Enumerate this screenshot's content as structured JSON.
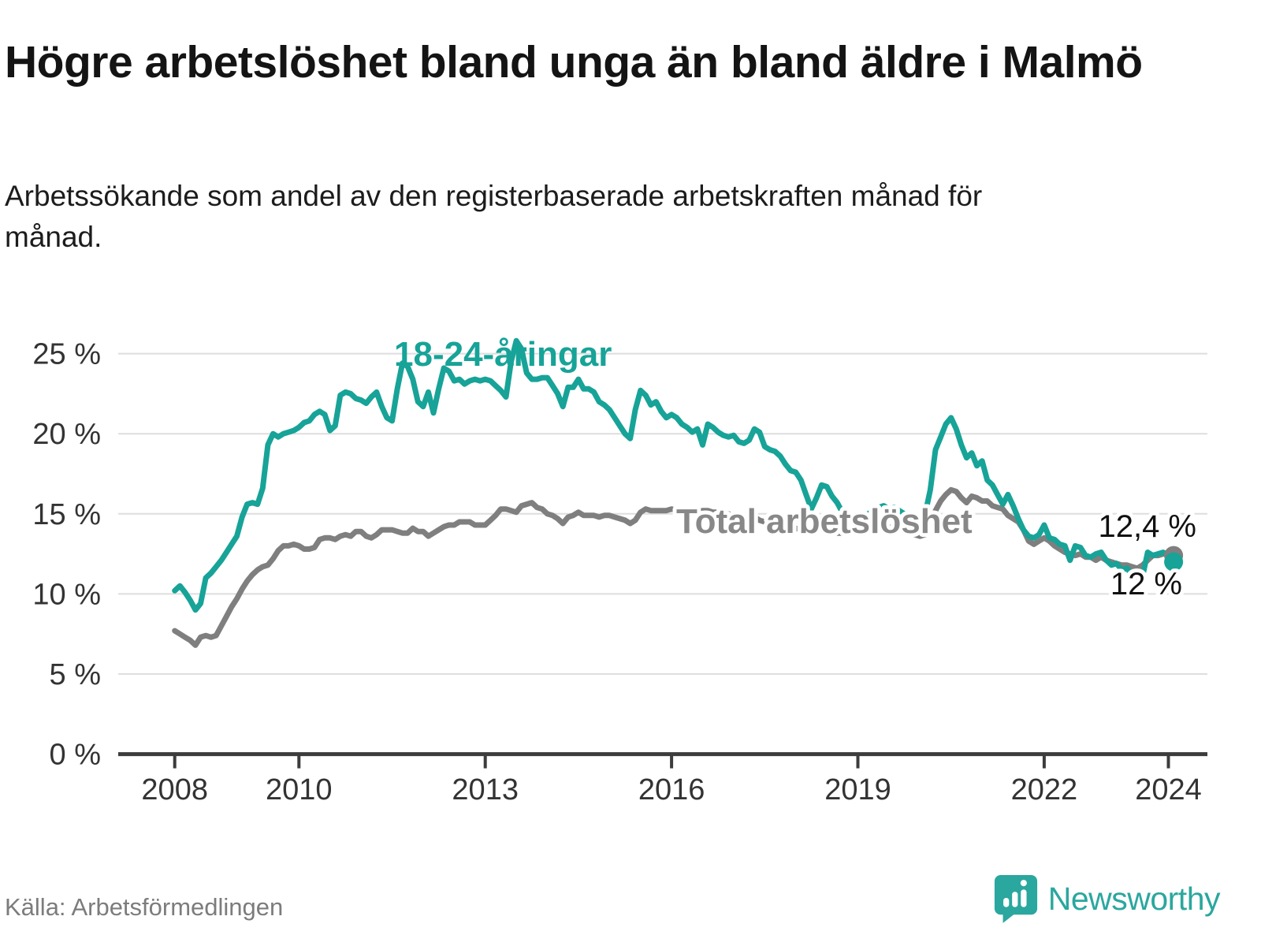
{
  "title": "Högre arbetslöshet bland unga än bland äldre i Malmö",
  "subtitle": "Arbetssökande som andel av den registerbaserade arbetskraften månad för månad.",
  "source": "Källa: Arbetsförmedlingen",
  "brand": {
    "name": "Newsworthy",
    "color": "#2AA79E"
  },
  "colors": {
    "youth_line": "#17A398",
    "total_line": "#7F7F7F",
    "total_label": "#888888",
    "grid": "#DEDEDE",
    "axis": "#3C3C3C",
    "tick_text": "#333333",
    "end_label_text": "#111111"
  },
  "chart_data": {
    "type": "line",
    "title": "Högre arbetslöshet bland unga än bland äldre i Malmö",
    "xlabel": "",
    "ylabel": "",
    "grid": true,
    "legend_position": "inline-labels",
    "x_start": "2008-01",
    "x_end": "2024-02",
    "x_unit": "month",
    "ylim": [
      0,
      27
    ],
    "y_tick_values": [
      0,
      5,
      10,
      15,
      20,
      25
    ],
    "y_tick_labels": [
      "0 %",
      "5 %",
      "10 %",
      "15 %",
      "20 %",
      "25 %"
    ],
    "x_tick_years": [
      2008,
      2010,
      2013,
      2016,
      2019,
      2022,
      2024
    ],
    "x_tick_labels": [
      "2008",
      "2010",
      "2013",
      "2016",
      "2019",
      "2022",
      "2024"
    ],
    "series": [
      {
        "name": "Total arbetslöshet",
        "color": "#7F7F7F",
        "end_label": "12,4 %",
        "end_value": 12.4,
        "values": [
          7.7,
          7.5,
          7.3,
          7.1,
          6.8,
          7.3,
          7.4,
          7.3,
          7.4,
          8.0,
          8.6,
          9.2,
          9.7,
          10.3,
          10.8,
          11.2,
          11.5,
          11.7,
          11.8,
          12.2,
          12.7,
          13.0,
          13.0,
          13.1,
          13.0,
          12.8,
          12.8,
          12.9,
          13.4,
          13.5,
          13.5,
          13.4,
          13.6,
          13.7,
          13.6,
          13.9,
          13.9,
          13.6,
          13.5,
          13.7,
          14.0,
          14.0,
          14.0,
          13.9,
          13.8,
          13.8,
          14.1,
          13.9,
          13.9,
          13.6,
          13.8,
          14.0,
          14.2,
          14.3,
          14.3,
          14.5,
          14.5,
          14.5,
          14.3,
          14.3,
          14.3,
          14.6,
          14.9,
          15.3,
          15.3,
          15.2,
          15.1,
          15.5,
          15.6,
          15.7,
          15.4,
          15.3,
          15.0,
          14.9,
          14.7,
          14.4,
          14.8,
          14.9,
          15.1,
          14.9,
          14.9,
          14.9,
          14.8,
          14.9,
          14.9,
          14.8,
          14.7,
          14.6,
          14.4,
          14.6,
          15.1,
          15.3,
          15.2,
          15.2,
          15.2,
          15.2,
          15.3,
          15.2,
          15.2,
          15.3,
          15.0,
          15.1,
          15.2,
          15.2,
          15.1,
          15.1,
          15.0,
          15.0,
          14.9,
          14.8,
          14.7,
          14.7,
          14.8,
          14.6,
          14.5,
          14.4,
          14.3,
          14.3,
          14.2,
          14.1,
          14.1,
          14.0,
          13.9,
          13.9,
          14.0,
          14.1,
          14.0,
          13.9,
          13.8,
          13.8,
          13.9,
          13.9,
          13.9,
          13.9,
          13.9,
          14.0,
          14.1,
          14.1,
          14.2,
          14.1,
          14.0,
          13.9,
          13.8,
          13.7,
          13.6,
          13.7,
          14.1,
          15.2,
          15.8,
          16.2,
          16.5,
          16.4,
          16.0,
          15.7,
          16.1,
          16.0,
          15.8,
          15.8,
          15.5,
          15.4,
          15.3,
          14.9,
          14.7,
          14.5,
          14.0,
          13.3,
          13.1,
          13.3,
          13.5,
          13.3,
          13.0,
          12.8,
          12.6,
          12.5,
          12.4,
          12.5,
          12.3,
          12.3,
          12.1,
          12.3,
          12.1,
          12.0,
          11.9,
          11.8,
          11.8,
          11.7,
          11.6,
          11.8,
          12.1,
          12.4,
          12.4,
          12.5,
          12.5,
          12.4
        ]
      },
      {
        "name": "18-24-åringar",
        "color": "#17A398",
        "end_label": "12 %",
        "end_value": 12.0,
        "values": [
          10.2,
          10.5,
          10.1,
          9.6,
          9.0,
          9.4,
          11.0,
          11.3,
          11.7,
          12.1,
          12.6,
          13.1,
          13.6,
          14.8,
          15.6,
          15.7,
          15.6,
          16.6,
          19.3,
          20.0,
          19.8,
          20.0,
          20.1,
          20.2,
          20.4,
          20.7,
          20.8,
          21.2,
          21.4,
          21.2,
          20.2,
          20.5,
          22.4,
          22.6,
          22.5,
          22.2,
          22.1,
          21.9,
          22.3,
          22.6,
          21.7,
          21.0,
          20.8,
          22.8,
          24.4,
          24.2,
          23.4,
          22.0,
          21.7,
          22.6,
          21.3,
          22.8,
          24.1,
          23.9,
          23.3,
          23.4,
          23.1,
          23.3,
          23.4,
          23.3,
          23.4,
          23.3,
          23.0,
          22.7,
          22.3,
          24.5,
          25.8,
          25.3,
          23.8,
          23.4,
          23.4,
          23.5,
          23.5,
          23.0,
          22.5,
          21.7,
          22.9,
          22.9,
          23.4,
          22.8,
          22.8,
          22.6,
          22.0,
          21.8,
          21.5,
          21.0,
          20.5,
          20.0,
          19.7,
          21.5,
          22.7,
          22.4,
          21.8,
          22.0,
          21.4,
          21.0,
          21.2,
          21.0,
          20.6,
          20.4,
          20.1,
          20.3,
          19.3,
          20.6,
          20.4,
          20.1,
          19.9,
          19.8,
          19.9,
          19.5,
          19.4,
          19.6,
          20.3,
          20.1,
          19.2,
          19.0,
          18.9,
          18.6,
          18.1,
          17.7,
          17.6,
          17.1,
          16.2,
          15.3,
          16.0,
          16.8,
          16.7,
          16.1,
          15.7,
          15.1,
          14.9,
          14.8,
          14.8,
          14.9,
          15.0,
          15.2,
          15.4,
          15.5,
          15.3,
          15.4,
          15.2,
          15.0,
          14.9,
          14.9,
          14.8,
          15.0,
          16.5,
          19.0,
          19.8,
          20.6,
          21.0,
          20.3,
          19.3,
          18.5,
          18.8,
          18.0,
          18.3,
          17.1,
          16.8,
          16.2,
          15.6,
          16.2,
          15.5,
          14.7,
          14.0,
          13.6,
          13.5,
          13.7,
          14.3,
          13.5,
          13.4,
          13.1,
          13.0,
          12.1,
          13.0,
          12.9,
          12.4,
          12.3,
          12.5,
          12.6,
          12.1,
          11.8,
          11.9,
          11.5,
          11.6,
          11.2,
          10.9,
          11.1,
          12.6,
          12.4,
          12.5,
          12.6,
          12.4,
          12.0
        ]
      }
    ],
    "annotations": {
      "youth_label": "18-24-åringar",
      "total_label": "Total arbetslöshet",
      "youth_end_label": "12 %",
      "total_end_label": "12,4 %"
    }
  }
}
